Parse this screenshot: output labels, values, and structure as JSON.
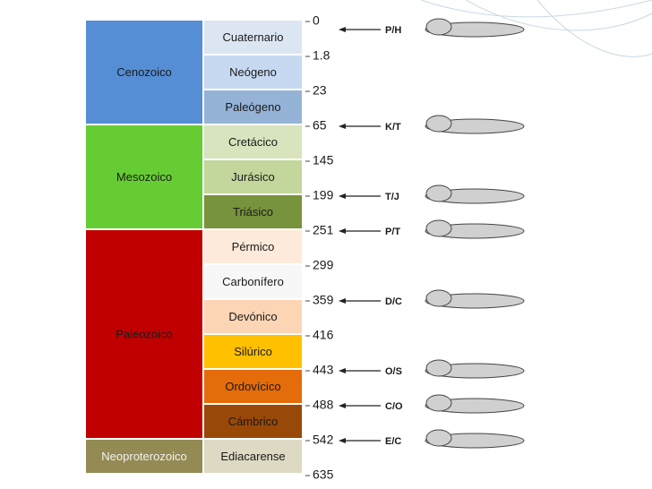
{
  "eras": [
    {
      "name": "Cenozoico",
      "color": "#558ed5",
      "periods": [
        {
          "name": "Cuaternario",
          "color": "#dce6f2"
        },
        {
          "name": "Neógeno",
          "color": "#c6d9f1"
        },
        {
          "name": "Paleógeno",
          "color": "#95b3d7"
        }
      ]
    },
    {
      "name": "Mesozoico",
      "color": "#66cc33",
      "periods": [
        {
          "name": "Cretácico",
          "color": "#d7e4bd"
        },
        {
          "name": "Jurásico",
          "color": "#c3d69b"
        },
        {
          "name": "Triásico",
          "color": "#77933c"
        }
      ]
    },
    {
      "name": "Paleozoico",
      "color": "#c00000",
      "periods": [
        {
          "name": "Pérmico",
          "color": "#fdeada"
        },
        {
          "name": "Carbonífero",
          "color": "#f7f7f7"
        },
        {
          "name": "Devónico",
          "color": "#fcd5b5"
        },
        {
          "name": "Silúrico",
          "color": "#ffc000"
        },
        {
          "name": "Ordovícico",
          "color": "#e46c0a"
        },
        {
          "name": "Cámbrico",
          "color": "#984807"
        }
      ]
    },
    {
      "name": "Neoproterozoico",
      "color": "#948a54",
      "periods": [
        {
          "name": "Ediacarense",
          "color": "#ddd9c3"
        }
      ]
    }
  ],
  "boundaries": [
    {
      "age": "0",
      "event": "P/H"
    },
    {
      "age": "1.8"
    },
    {
      "age": "23"
    },
    {
      "age": "65",
      "event": "K/T"
    },
    {
      "age": "145"
    },
    {
      "age": "199",
      "event": "T/J"
    },
    {
      "age": "251",
      "event": "P/T"
    },
    {
      "age": "299"
    },
    {
      "age": "359",
      "event": "D/C"
    },
    {
      "age": "416"
    },
    {
      "age": "443",
      "event": "O/S"
    },
    {
      "age": "488",
      "event": "C/O"
    },
    {
      "age": "542",
      "event": "E/C"
    },
    {
      "age": "635"
    }
  ]
}
